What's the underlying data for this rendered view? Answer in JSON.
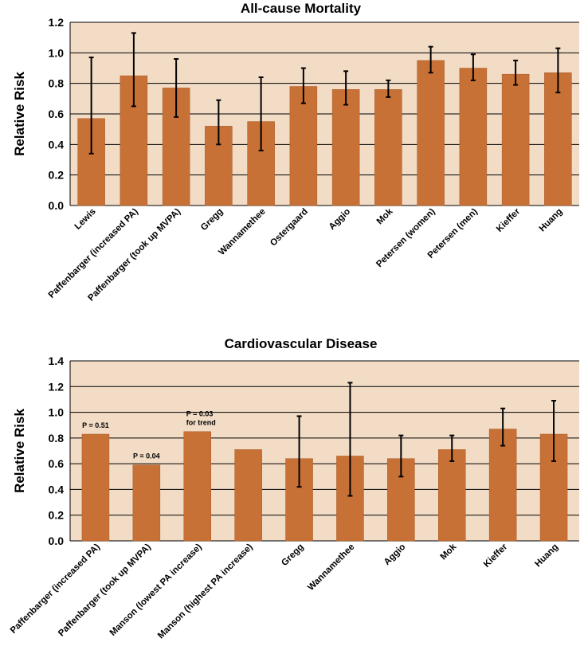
{
  "chart_data": [
    {
      "type": "bar",
      "title": "All-cause Mortality",
      "xlabel": "",
      "ylabel": "Relative Risk",
      "ylim": [
        0,
        1.2
      ],
      "yticks": [
        "0.0",
        "0.2",
        "0.4",
        "0.6",
        "0.8",
        "1.0",
        "1.2"
      ],
      "grid": true,
      "colors": {
        "bar": "#c87137",
        "plot_bg": "#f2dcc6",
        "error": "#000000"
      },
      "categories": [
        "Lewis",
        "Paffenbarger (increased PA)",
        "Paffenbarger (took up MVPA)",
        "Gregg",
        "Wannamethee",
        "Ostergaard",
        "Aggio",
        "Mok",
        "Petersen (women)",
        "Petersen (men)",
        "Kieffer",
        "Huang"
      ],
      "values": [
        0.57,
        0.85,
        0.77,
        0.52,
        0.55,
        0.78,
        0.76,
        0.76,
        0.95,
        0.9,
        0.86,
        0.87
      ],
      "error_low": [
        0.34,
        0.65,
        0.58,
        0.4,
        0.36,
        0.67,
        0.66,
        0.71,
        0.87,
        0.82,
        0.79,
        0.74
      ],
      "error_high": [
        0.97,
        1.13,
        0.96,
        0.69,
        0.84,
        0.9,
        0.88,
        0.82,
        1.04,
        0.99,
        0.95,
        1.03
      ],
      "annotations": []
    },
    {
      "type": "bar",
      "title": "Cardiovascular Disease",
      "xlabel": "",
      "ylabel": "Relative Risk",
      "ylim": [
        0,
        1.4
      ],
      "yticks": [
        "0.0",
        "0.2",
        "0.4",
        "0.6",
        "0.8",
        "1.0",
        "1.2",
        "1.4"
      ],
      "grid": true,
      "colors": {
        "bar": "#c87137",
        "plot_bg": "#f2dcc6",
        "error": "#000000"
      },
      "categories": [
        "Paffenbarger (increased PA)",
        "Paffenbarger (took up MVPA)",
        "Manson (lowest PA increase)",
        "Manson (highest PA increase)",
        "Gregg",
        "Wannamethee",
        "Aggio",
        "Mok",
        "Kieffer",
        "Huang"
      ],
      "values": [
        0.83,
        0.59,
        0.85,
        0.71,
        0.64,
        0.66,
        0.64,
        0.71,
        0.87,
        0.83
      ],
      "error_low": [
        null,
        null,
        null,
        null,
        0.42,
        0.35,
        0.5,
        0.62,
        0.74,
        0.62
      ],
      "error_high": [
        null,
        null,
        null,
        null,
        0.97,
        1.23,
        0.82,
        0.82,
        1.03,
        1.09
      ],
      "annotations": [
        {
          "category_index": 0,
          "lines": [
            "P = 0.51"
          ],
          "y": 0.88
        },
        {
          "category_index": 1,
          "lines": [
            "P = 0.04"
          ],
          "y": 0.64
        },
        {
          "category_index": 2,
          "lines": [
            "P = 0.03",
            "for trend"
          ],
          "y": 0.97
        }
      ]
    }
  ]
}
